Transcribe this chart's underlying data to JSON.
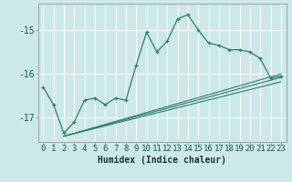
{
  "xlabel": "Humidex (Indice chaleur)",
  "bg_color": "#cce8e8",
  "grid_color": "#ffffff",
  "line_color": "#2e7d6e",
  "xlim": [
    -0.5,
    23.5
  ],
  "ylim": [
    -17.55,
    -14.4
  ],
  "yticks": [
    -17,
    -16,
    -15
  ],
  "ytick_labels": [
    "-17",
    "-16",
    "-15"
  ],
  "xticks": [
    0,
    1,
    2,
    3,
    4,
    5,
    6,
    7,
    8,
    9,
    10,
    11,
    12,
    13,
    14,
    15,
    16,
    17,
    18,
    19,
    20,
    21,
    22,
    23
  ],
  "main_x": [
    0,
    1,
    2,
    3,
    4,
    5,
    6,
    7,
    8,
    9,
    10,
    11,
    12,
    13,
    14,
    15,
    16,
    17,
    18,
    19,
    20,
    21,
    22,
    23
  ],
  "main_y": [
    -16.3,
    -16.7,
    -17.35,
    -17.1,
    -16.6,
    -16.55,
    -16.7,
    -16.55,
    -16.6,
    -15.8,
    -15.05,
    -15.5,
    -15.25,
    -14.75,
    -14.65,
    -15.0,
    -15.3,
    -15.35,
    -15.45,
    -15.45,
    -15.5,
    -15.65,
    -16.1,
    -16.05
  ],
  "trend1_x": [
    2,
    23
  ],
  "trend1_y": [
    -17.42,
    -16.0
  ],
  "trend2_x": [
    2,
    23
  ],
  "trend2_y": [
    -17.42,
    -16.08
  ],
  "trend3_x": [
    2,
    23
  ],
  "trend3_y": [
    -17.42,
    -16.18
  ],
  "xlabel_fontsize": 7,
  "tick_fontsize": 6.5,
  "ytick_fontsize": 7
}
